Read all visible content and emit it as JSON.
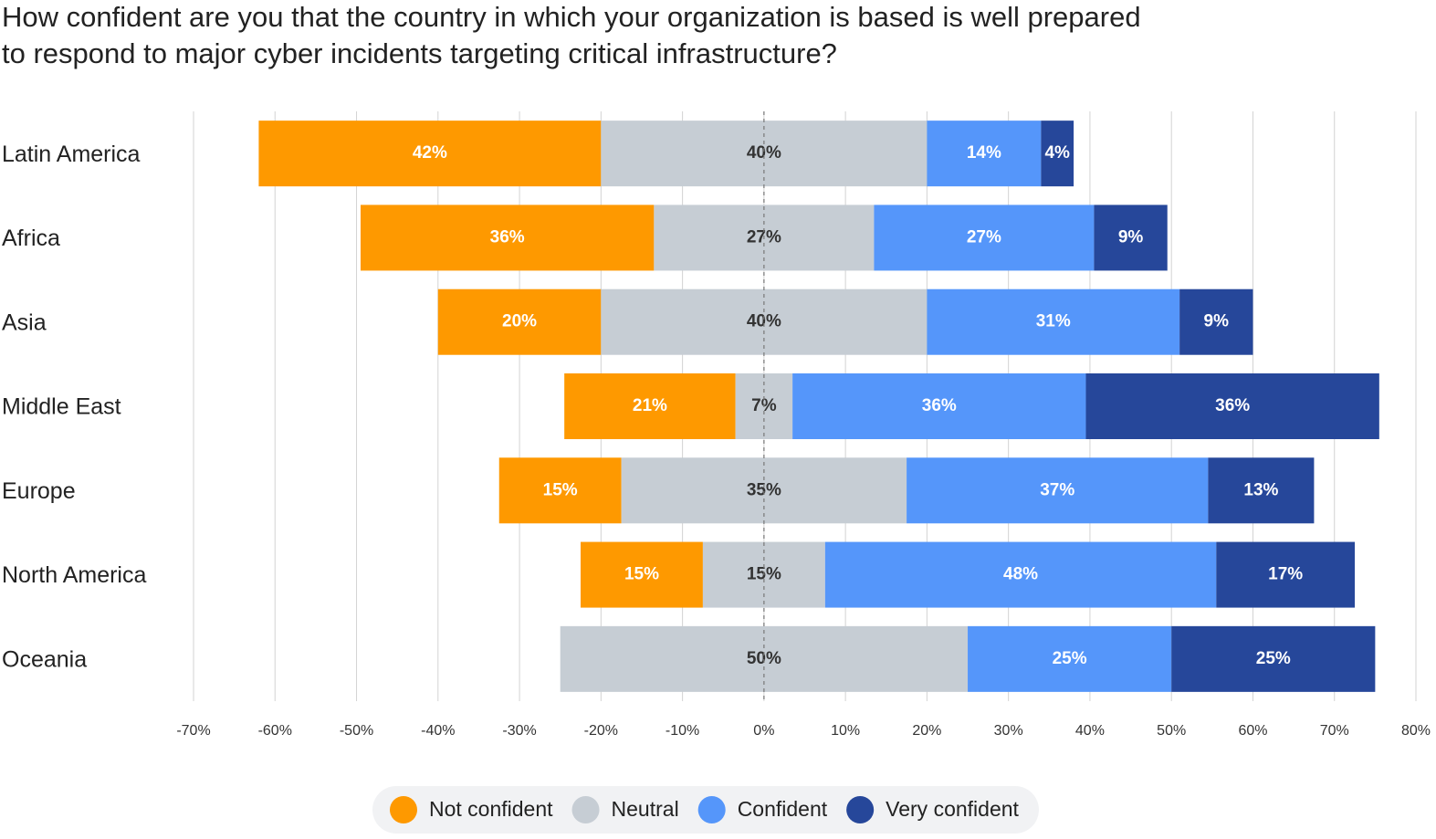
{
  "chart_data": {
    "type": "diverging-bar",
    "title": [
      "How confident are you that the country in which your organization is based is well prepared",
      "to respond to major cyber incidents targeting critical infrastructure?"
    ],
    "categories": [
      "Latin America",
      "Africa",
      "Asia",
      "Middle East",
      "Europe",
      "North America",
      "Oceania"
    ],
    "series": [
      {
        "name": "Not confident",
        "color": "#fe9900",
        "label_color": "#ffffff",
        "side": "left",
        "values": [
          42,
          36,
          20,
          21,
          15,
          15,
          null
        ],
        "value_labels": [
          "42%",
          "36%",
          "20%",
          "21%",
          "15%",
          "15%",
          null
        ]
      },
      {
        "name": "Neutral",
        "color": "#c6cdd4",
        "label_color": "#333333",
        "side": "center",
        "values": [
          40,
          27,
          40,
          7,
          35,
          15,
          50
        ],
        "value_labels": [
          "40%",
          "27%",
          "40%",
          "7%",
          "35%",
          "15%",
          "50%"
        ]
      },
      {
        "name": "Confident",
        "color": "#5596fa",
        "label_color": "#ffffff",
        "side": "right",
        "values": [
          14,
          27,
          31,
          36,
          37,
          48,
          25
        ],
        "value_labels": [
          "14%",
          "27%",
          "31%",
          "36%",
          "37%",
          "48%",
          "25%"
        ]
      },
      {
        "name": "Very confident",
        "color": "#26479a",
        "label_color": "#ffffff",
        "side": "right",
        "values": [
          4,
          9,
          9,
          36,
          13,
          17,
          25
        ],
        "value_labels": [
          "4%",
          "9%",
          "9%",
          "36%",
          "13%",
          "17%",
          "25%"
        ]
      }
    ],
    "xlim": [
      -70,
      80
    ],
    "xticks": [
      {
        "value": -70,
        "label": "-70%"
      },
      {
        "value": -60,
        "label": "-60%"
      },
      {
        "value": -50,
        "label": "-50%"
      },
      {
        "value": -40,
        "label": "-40%"
      },
      {
        "value": -30,
        "label": "-30%"
      },
      {
        "value": -20,
        "label": "-20%"
      },
      {
        "value": -10,
        "label": "-10%"
      },
      {
        "value": 0,
        "label": "0%"
      },
      {
        "value": 10,
        "label": "10%"
      },
      {
        "value": 20,
        "label": "20%"
      },
      {
        "value": 30,
        "label": "30%"
      },
      {
        "value": 40,
        "label": "40%"
      },
      {
        "value": 50,
        "label": "50%"
      },
      {
        "value": 60,
        "label": "60%"
      },
      {
        "value": 70,
        "label": "70%"
      },
      {
        "value": 80,
        "label": "80%"
      }
    ],
    "grid": true
  }
}
